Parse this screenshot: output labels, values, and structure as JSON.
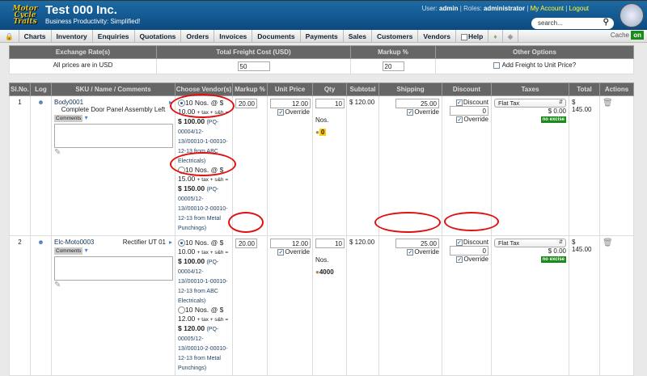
{
  "header": {
    "logo_text": "Motor Cycle Traits",
    "company": "Test 000 Inc.",
    "tagline": "Business Productivity: Simplified!",
    "user_label": "User:",
    "user": "admin",
    "roles_label": "Roles:",
    "role": "administrator",
    "my_account": "My Account",
    "logout": "Logout",
    "search_placeholder": "search..."
  },
  "nav": {
    "items": [
      "Charts",
      "Inventory",
      "Enquiries",
      "Quotations",
      "Orders",
      "Invoices",
      "Documents",
      "Payments",
      "Sales",
      "Customers",
      "Vendors",
      "Help"
    ],
    "cache_label": "Cache",
    "cache_state": "on"
  },
  "settings": {
    "headers": [
      "Exchange Rate(s)",
      "Total Freight Cost (USD)",
      "Markup %",
      "Other Options"
    ],
    "currency_note": "All prices are in USD",
    "freight": "50",
    "markup": "20",
    "freight_option": "Add Freight to Unit Price?"
  },
  "table": {
    "headers": [
      "Sl.No.",
      "Log",
      "SKU / Name / Comments",
      "Choose Vendor(s)",
      "Markup %",
      "Unit Price",
      "Qty",
      "Subtotal",
      "Shipping",
      "Discount",
      "Taxes",
      "Total",
      "Actions"
    ],
    "comments_label": "Comments",
    "override": "Override",
    "discount_label": "Discount",
    "uom": "Nos.",
    "no_excise": "no excise",
    "rows": [
      {
        "no": "1",
        "sku": "Body0001",
        "name": "Complete Door Panel Assembly Left",
        "vendors": [
          {
            "selected": true,
            "qty": "10 Nos. @ $",
            "price": "10.00",
            "extra": "+ tax + s&h =",
            "total": "$ 100.00",
            "ref": "(PQ-00004/12-13//00010-1-00010-12-13 from ABC Electricals)"
          },
          {
            "selected": false,
            "qty": "10 Nos. @ $",
            "price": "15.00",
            "extra": "+ tax + s&h =",
            "total": "$ 150.00",
            "ref": "(PQ-00005/12-13//00010-2-00010-12-13 from Metal Punchings)"
          }
        ],
        "markup": "20.00",
        "unit_price": "12.00",
        "qty": "10",
        "stock": "0",
        "subtotal": "$ 120.00",
        "shipping": "25.00",
        "discount": "0",
        "tax": "Flat Tax",
        "tax_amount": "$ 0.00",
        "total": "$ 145.00"
      },
      {
        "no": "2",
        "sku": "Elc-Moto0003",
        "name": "Rectifier UT 01",
        "vendors": [
          {
            "selected": true,
            "qty": "10 Nos. @ $",
            "price": "10.00",
            "extra": "+ tax + s&h =",
            "total": "$ 100.00",
            "ref": "(PQ-00004/12-13//00010-1-00010-12-13 from ABC Electricals)"
          },
          {
            "selected": false,
            "qty": "10 Nos. @ $",
            "price": "12.00",
            "extra": "+ tax + s&h =",
            "total": "$ 120.00",
            "ref": "(PQ-00005/12-13//00010-2-00010-12-13 from Metal Punchings)"
          }
        ],
        "markup": "20.00",
        "unit_price": "12.00",
        "qty": "10",
        "stock": "4000",
        "subtotal": "$ 120.00",
        "shipping": "25.00",
        "discount": "0",
        "tax": "Flat Tax",
        "tax_amount": "$ 0.00",
        "total": "$ 145.00"
      }
    ]
  },
  "colors": {
    "header": "#1d6aa3",
    "annotation": "#e01010",
    "cache_on": "#1a8a1a",
    "link": "#ffff33"
  }
}
